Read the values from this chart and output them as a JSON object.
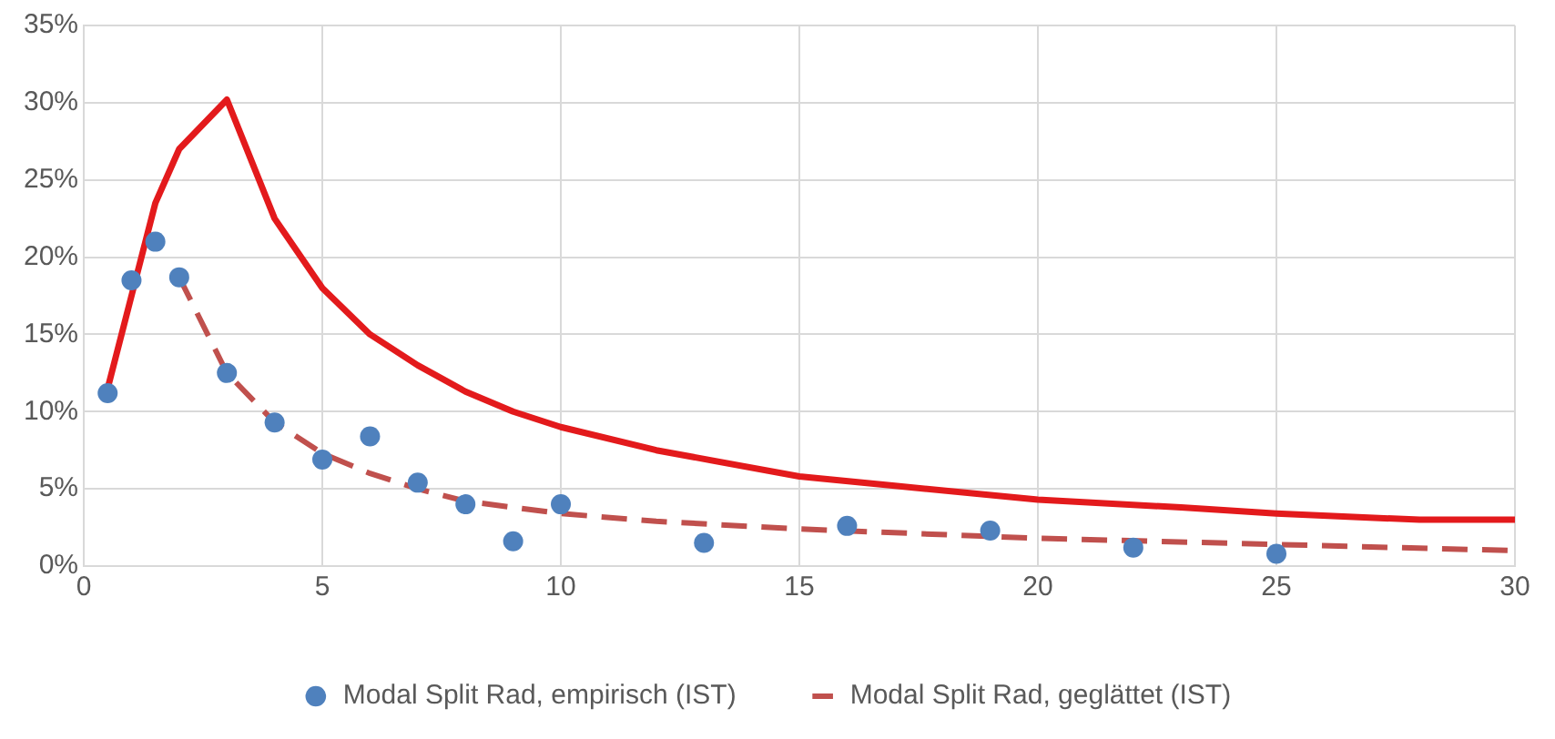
{
  "chart_data": {
    "type": "line",
    "xlim": [
      0,
      30
    ],
    "xticks": [
      0,
      5,
      10,
      15,
      20,
      25,
      30
    ],
    "ylim": [
      0,
      35
    ],
    "yticks": [
      {
        "value": 0,
        "label": "0%"
      },
      {
        "value": 5,
        "label": "5%"
      },
      {
        "value": 10,
        "label": "10%"
      },
      {
        "value": 15,
        "label": "15%"
      },
      {
        "value": 20,
        "label": "20%"
      },
      {
        "value": 25,
        "label": "25%"
      },
      {
        "value": 30,
        "label": "30%"
      },
      {
        "value": 35,
        "label": "35%"
      }
    ],
    "grid": true,
    "legend": "bottom",
    "series": [
      {
        "color": "#e31a1c",
        "line_style": "solid",
        "marker": "none",
        "x": [
          0.5,
          1,
          1.5,
          2,
          3,
          4,
          5,
          6,
          7,
          8,
          9,
          10,
          12,
          15,
          17,
          20,
          23,
          25,
          28,
          30
        ],
        "values": [
          11.5,
          17.5,
          23.5,
          27,
          30.2,
          22.5,
          18,
          15,
          13,
          11.3,
          10,
          9,
          7.5,
          5.8,
          5.2,
          4.3,
          3.8,
          3.4,
          3,
          3
        ]
      },
      {
        "type": "scatter",
        "name": "Modal Split Rad, empirisch (IST)",
        "color": "#4f81bd",
        "marker": "circle",
        "x": [
          0.5,
          1,
          1.5,
          2,
          3,
          4,
          5,
          6,
          7,
          8,
          9,
          10,
          13,
          16,
          19,
          22,
          25
        ],
        "values": [
          11.2,
          18.5,
          21,
          18.7,
          12.5,
          9.3,
          6.9,
          8.4,
          5.4,
          4,
          1.6,
          4,
          1.5,
          2.6,
          2.3,
          1.2,
          0.8
        ]
      },
      {
        "name": "Modal Split Rad, geglättet (IST)",
        "color": "#c0504d",
        "line_style": "dashed",
        "marker": "none",
        "x": [
          2,
          3,
          4,
          5,
          6,
          7,
          8,
          10,
          12,
          15,
          20,
          25,
          30
        ],
        "values": [
          18.7,
          12.5,
          9.3,
          7.3,
          6,
          5,
          4.2,
          3.4,
          2.9,
          2.4,
          1.8,
          1.4,
          1
        ]
      }
    ]
  }
}
